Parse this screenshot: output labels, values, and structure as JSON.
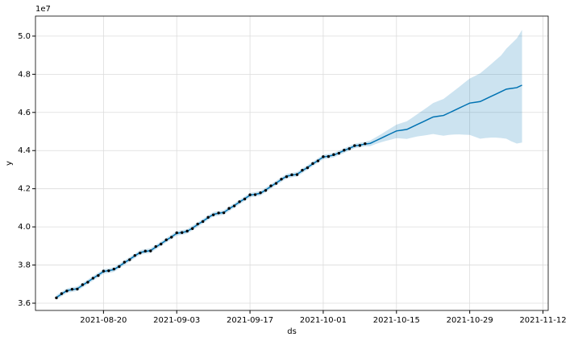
{
  "chart_data": {
    "type": "forecast",
    "xlabel": "ds",
    "ylabel": "y",
    "offset_label": "1e7",
    "line_color": "#0072B2",
    "band_color": "#0072B2",
    "point_color": "#000000",
    "grid": true,
    "xlim": [
      "2021-08-07",
      "2021-11-13"
    ],
    "xticks": [
      "2021-08-20",
      "2021-09-03",
      "2021-09-17",
      "2021-10-01",
      "2021-10-15",
      "2021-10-29",
      "2021-11-12"
    ],
    "ylim": [
      3.562,
      5.105
    ],
    "yticks": [
      3.6,
      3.8,
      {
        "value": 4,
        "label": "4.0"
      },
      4.2,
      4.4,
      4.6,
      4.8,
      {
        "value": 5,
        "label": "5.0"
      }
    ],
    "x": [
      "2021-08-11",
      "2021-08-12",
      "2021-08-13",
      "2021-08-14",
      "2021-08-15",
      "2021-08-16",
      "2021-08-17",
      "2021-08-18",
      "2021-08-19",
      "2021-08-20",
      "2021-08-21",
      "2021-08-22",
      "2021-08-23",
      "2021-08-24",
      "2021-08-25",
      "2021-08-26",
      "2021-08-27",
      "2021-08-28",
      "2021-08-29",
      "2021-08-30",
      "2021-08-31",
      "2021-09-01",
      "2021-09-02",
      "2021-09-03",
      "2021-09-04",
      "2021-09-05",
      "2021-09-06",
      "2021-09-07",
      "2021-09-08",
      "2021-09-09",
      "2021-09-10",
      "2021-09-11",
      "2021-09-12",
      "2021-09-13",
      "2021-09-14",
      "2021-09-15",
      "2021-09-16",
      "2021-09-17",
      "2021-09-18",
      "2021-09-19",
      "2021-09-20",
      "2021-09-21",
      "2021-09-22",
      "2021-09-23",
      "2021-09-24",
      "2021-09-25",
      "2021-09-26",
      "2021-09-27",
      "2021-09-28",
      "2021-09-29",
      "2021-09-30",
      "2021-10-01",
      "2021-10-02",
      "2021-10-03",
      "2021-10-04",
      "2021-10-05",
      "2021-10-06",
      "2021-10-07",
      "2021-10-08",
      "2021-10-09",
      "2021-10-10",
      "2021-10-11",
      "2021-10-12",
      "2021-10-13",
      "2021-10-14",
      "2021-10-15",
      "2021-10-16",
      "2021-10-17",
      "2021-10-18",
      "2021-10-19",
      "2021-10-20",
      "2021-10-21",
      "2021-10-22",
      "2021-10-23",
      "2021-10-24",
      "2021-10-25",
      "2021-10-26",
      "2021-10-27",
      "2021-10-28",
      "2021-10-29",
      "2021-10-30",
      "2021-10-31",
      "2021-11-01",
      "2021-11-02",
      "2021-11-03",
      "2021-11-04",
      "2021-11-05",
      "2021-11-06",
      "2021-11-07",
      "2021-11-08"
    ],
    "yhat": [
      3.63,
      3.648,
      3.666,
      3.671,
      3.676,
      3.694,
      3.712,
      3.73,
      3.748,
      3.766,
      3.771,
      3.776,
      3.794,
      3.812,
      3.83,
      3.848,
      3.866,
      3.871,
      3.876,
      3.894,
      3.912,
      3.93,
      3.948,
      3.966,
      3.971,
      3.976,
      3.994,
      4.012,
      4.03,
      4.048,
      4.066,
      4.071,
      4.076,
      4.094,
      4.112,
      4.13,
      4.148,
      4.166,
      4.171,
      4.176,
      4.194,
      4.212,
      4.23,
      4.248,
      4.266,
      4.271,
      4.276,
      4.294,
      4.312,
      4.33,
      4.348,
      4.366,
      4.371,
      4.376,
      4.388,
      4.4,
      4.412,
      4.424,
      4.429,
      4.434,
      4.438,
      4.451,
      4.464,
      4.477,
      4.49,
      4.503,
      4.507,
      4.511,
      4.524,
      4.537,
      4.55,
      4.563,
      4.576,
      4.58,
      4.584,
      4.597,
      4.61,
      4.623,
      4.636,
      4.649,
      4.653,
      4.657,
      4.67,
      4.683,
      4.696,
      4.709,
      4.722,
      4.726,
      4.73,
      4.743
    ],
    "yhat_lower": [
      3.618,
      3.636,
      3.654,
      3.659,
      3.664,
      3.682,
      3.7,
      3.718,
      3.736,
      3.754,
      3.759,
      3.764,
      3.782,
      3.8,
      3.818,
      3.836,
      3.854,
      3.859,
      3.864,
      3.882,
      3.9,
      3.918,
      3.936,
      3.954,
      3.959,
      3.964,
      3.982,
      4.0,
      4.018,
      4.036,
      4.054,
      4.059,
      4.064,
      4.082,
      4.1,
      4.118,
      4.136,
      4.154,
      4.159,
      4.164,
      4.182,
      4.2,
      4.218,
      4.236,
      4.254,
      4.259,
      4.264,
      4.282,
      4.3,
      4.318,
      4.336,
      4.354,
      4.359,
      4.364,
      4.376,
      4.388,
      4.4,
      4.412,
      4.417,
      4.422,
      4.423,
      4.434,
      4.443,
      4.451,
      4.458,
      4.465,
      4.463,
      4.461,
      4.468,
      4.474,
      4.478,
      4.482,
      4.487,
      4.482,
      4.478,
      4.482,
      4.484,
      4.485,
      4.483,
      4.482,
      4.472,
      4.462,
      4.466,
      4.468,
      4.468,
      4.466,
      4.462,
      4.448,
      4.437,
      4.442
    ],
    "yhat_upper": [
      3.642,
      3.66,
      3.678,
      3.683,
      3.688,
      3.706,
      3.724,
      3.742,
      3.76,
      3.778,
      3.783,
      3.788,
      3.806,
      3.824,
      3.842,
      3.86,
      3.878,
      3.883,
      3.888,
      3.906,
      3.924,
      3.942,
      3.96,
      3.978,
      3.983,
      3.988,
      4.006,
      4.024,
      4.042,
      4.06,
      4.078,
      4.083,
      4.088,
      4.106,
      4.124,
      4.142,
      4.16,
      4.178,
      4.183,
      4.188,
      4.206,
      4.224,
      4.242,
      4.26,
      4.278,
      4.283,
      4.288,
      4.306,
      4.324,
      4.342,
      4.36,
      4.378,
      4.383,
      4.388,
      4.4,
      4.412,
      4.424,
      4.436,
      4.441,
      4.446,
      4.453,
      4.469,
      4.485,
      4.502,
      4.519,
      4.536,
      4.545,
      4.554,
      4.572,
      4.591,
      4.61,
      4.629,
      4.649,
      4.66,
      4.671,
      4.692,
      4.713,
      4.734,
      4.756,
      4.778,
      4.791,
      4.805,
      4.828,
      4.851,
      4.875,
      4.899,
      4.934,
      4.961,
      4.988,
      5.033
    ],
    "actual": [
      3.628,
      3.65,
      3.664,
      3.673,
      3.674,
      3.697,
      3.71,
      3.731,
      3.745,
      3.768,
      3.77,
      3.779,
      3.792,
      3.815,
      3.828,
      3.85,
      3.863,
      3.873,
      3.874,
      3.897,
      3.91,
      3.932,
      3.946,
      3.969,
      3.97,
      3.978,
      3.991,
      4.015,
      4.028,
      4.05,
      4.063,
      4.073,
      4.074,
      4.097,
      4.11,
      4.132,
      4.146,
      4.168,
      4.169,
      4.179,
      4.191,
      4.215,
      4.228,
      4.25,
      4.263,
      4.273,
      4.274,
      4.297,
      4.31,
      4.332,
      4.346,
      4.368,
      4.369,
      4.379,
      4.386,
      4.402,
      4.41,
      4.426,
      4.427,
      4.436,
      null,
      null,
      null,
      null,
      null,
      null,
      null,
      null,
      null,
      null,
      null,
      null,
      null,
      null,
      null,
      null,
      null,
      null,
      null,
      null,
      null,
      null,
      null,
      null,
      null,
      null,
      null,
      null,
      null,
      null
    ]
  }
}
